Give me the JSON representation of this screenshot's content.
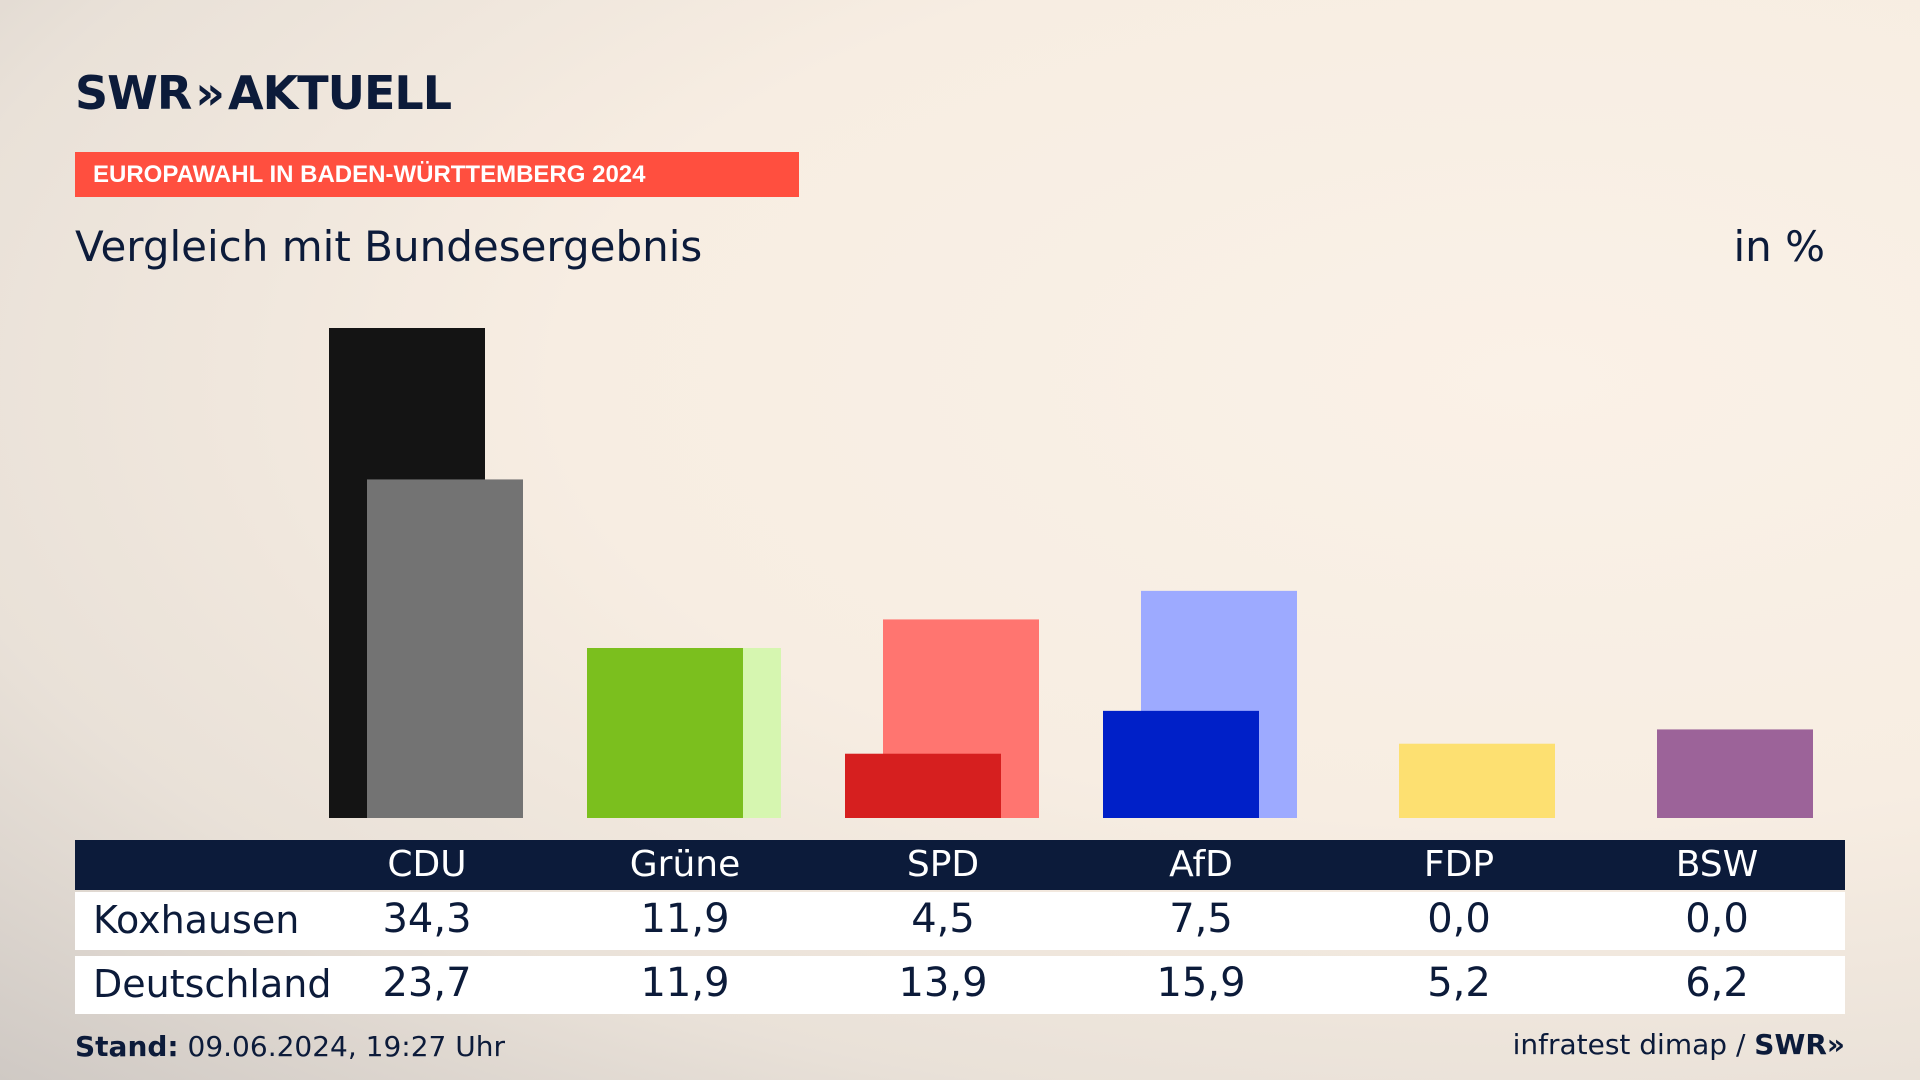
{
  "header": {
    "logo_swr": "SWR",
    "logo_chevrons": "»",
    "logo_aktuell": "AKTUELL",
    "banner": "EUROPAWAHL IN BADEN-WÜRTTEMBERG 2024",
    "subtitle": "Vergleich mit Bundesergebnis",
    "unit": "in %"
  },
  "chart_data": {
    "type": "bar",
    "title": "Vergleich mit Bundesergebnis",
    "ylabel": "in %",
    "categories": [
      "CDU",
      "Grüne",
      "SPD",
      "AfD",
      "FDP",
      "BSW"
    ],
    "series": [
      {
        "name": "Koxhausen",
        "values": [
          34.3,
          11.9,
          4.5,
          7.5,
          0.0,
          0.0
        ]
      },
      {
        "name": "Deutschland",
        "values": [
          23.7,
          11.9,
          13.9,
          15.9,
          5.2,
          6.2
        ]
      }
    ],
    "colors_primary": [
      "#141414",
      "#7bbf1e",
      "#d61f1f",
      "#0020c8",
      "#fde071",
      "#9c6399"
    ],
    "colors_secondary": [
      "#737373",
      "#d6f6b0",
      "#ff7570",
      "#9daaff",
      "#fde071",
      "#9c6399"
    ],
    "ylim": [
      0,
      35
    ],
    "grid": false,
    "legend": "table-below"
  },
  "table": {
    "rows": [
      {
        "label": "Koxhausen",
        "values": [
          "34,3",
          "11,9",
          "4,5",
          "7,5",
          "0,0",
          "0,0"
        ]
      },
      {
        "label": "Deutschland",
        "values": [
          "23,7",
          "11,9",
          "13,9",
          "15,9",
          "5,2",
          "6,2"
        ]
      }
    ]
  },
  "footer": {
    "stand_label": "Stand:",
    "stand_value": "09.06.2024, 19:27 Uhr",
    "source": "infratest dimap /",
    "source_logo": "SWR»"
  }
}
